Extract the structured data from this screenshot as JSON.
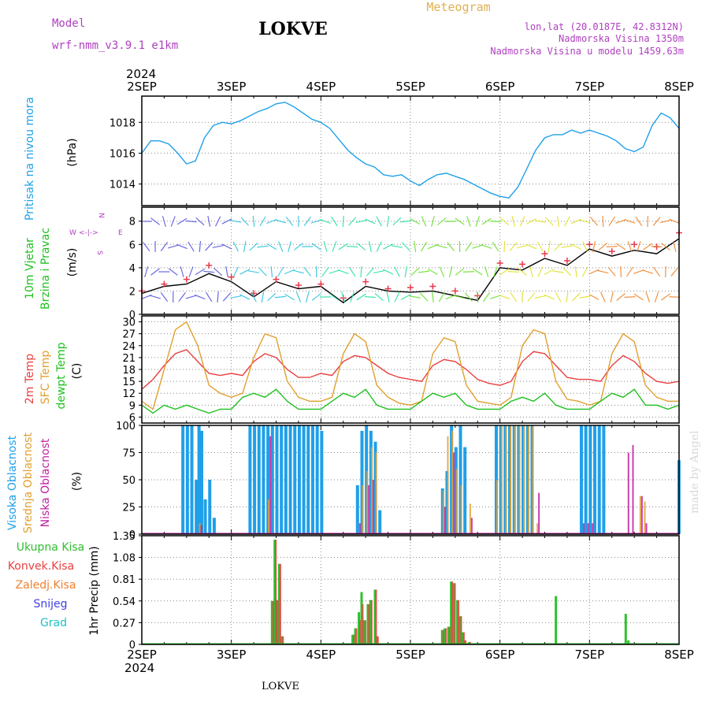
{
  "header": {
    "model_label": "Model",
    "model_name": "wrf-nmm_v3.9.1  e1km",
    "location_title": "LOKVE",
    "product_title": "Meteogram",
    "lonlat": "lon,lat (20.0187E, 42.8312N)",
    "altitude": "Nadmorska Visina 1350m",
    "model_altitude": "Nadmorska Visina u modelu 1459.63m",
    "footer_location": "LOKVE",
    "watermark": "made by Angel"
  },
  "colors": {
    "pressure": "#1fa0e8",
    "wind_speed_line": "#000000",
    "wind_gust_marker": "#e8384b",
    "temp_2m": "#e84040",
    "temp_sfc": "#e0a030",
    "temp_dewpt": "#20c020",
    "cloud_high": "#1fa0e8",
    "cloud_mid": "#e0a030",
    "cloud_low": "#c020a0",
    "precip_total": "#30c030",
    "precip_conv": "#e84040",
    "precip_frozen": "#f08030",
    "snow": "#4040e0",
    "grad": "#20c0c0",
    "title": "#e0b050",
    "model_text": "#b040c0",
    "grid": "#888888"
  },
  "time_axis": {
    "year": "2024",
    "ticks": [
      "2SEP",
      "3SEP",
      "4SEP",
      "5SEP",
      "6SEP",
      "7SEP",
      "8SEP"
    ]
  },
  "chart_data": [
    {
      "type": "line",
      "id": "pressure",
      "ylabel_left": "Pritisak na nivou mora",
      "ylabel_unit": "(hPa)",
      "yticks": [
        "1014",
        "1016",
        "1018"
      ],
      "ylim": [
        1012.6,
        1019.7
      ],
      "x": [
        0.0,
        0.1,
        0.2,
        0.3,
        0.4,
        0.5,
        0.6,
        0.7,
        0.8,
        0.9,
        1.0,
        1.1,
        1.2,
        1.3,
        1.4,
        1.5,
        1.6,
        1.7,
        1.8,
        1.9,
        2.0,
        2.1,
        2.2,
        2.3,
        2.4,
        2.5,
        2.6,
        2.7,
        2.8,
        2.9,
        3.0,
        3.1,
        3.2,
        3.3,
        3.4,
        3.5,
        3.6,
        3.7,
        3.8,
        3.9,
        4.0,
        4.1,
        4.2,
        4.3,
        4.4,
        4.5,
        4.6,
        4.7,
        4.8,
        4.9,
        5.0,
        5.1,
        5.2,
        5.3,
        5.4,
        5.5,
        5.6,
        5.7,
        5.8,
        5.9,
        6.0
      ],
      "series": [
        {
          "values": [
            1016.0,
            1016.8,
            1016.8,
            1016.6,
            1016.0,
            1015.3,
            1015.5,
            1017.0,
            1017.8,
            1018.0,
            1017.9,
            1018.1,
            1018.4,
            1018.7,
            1018.9,
            1019.2,
            1019.3,
            1019.0,
            1018.6,
            1018.2,
            1018.0,
            1017.6,
            1016.9,
            1016.2,
            1015.7,
            1015.3,
            1015.1,
            1014.6,
            1014.5,
            1014.6,
            1014.2,
            1013.9,
            1014.3,
            1014.6,
            1014.7,
            1014.5,
            1014.3,
            1014.0,
            1013.7,
            1013.4,
            1013.2,
            1013.1,
            1013.8,
            1015.0,
            1016.2,
            1017.0,
            1017.2,
            1017.2,
            1017.5,
            1017.3,
            1017.5,
            1017.3,
            1017.1,
            1016.8,
            1016.3,
            1016.1,
            1016.4,
            1017.8,
            1018.6,
            1018.3,
            1017.6
          ]
        }
      ]
    },
    {
      "type": "line",
      "id": "wind",
      "ylabel_left": "10m Vjetar",
      "ylabel_left2": "Brzina i Pravac",
      "ylabel_unit": "(m/s)",
      "compass": {
        "n": "N",
        "s": "S",
        "e": "E",
        "w": "W"
      },
      "yticks": [
        "0",
        "2",
        "4",
        "6",
        "8"
      ],
      "ylim": [
        0,
        9.2
      ],
      "x": [
        0.0,
        0.25,
        0.5,
        0.75,
        1.0,
        1.25,
        1.5,
        1.75,
        2.0,
        2.25,
        2.5,
        2.75,
        3.0,
        3.25,
        3.5,
        3.75,
        4.0,
        4.25,
        4.5,
        4.75,
        5.0,
        5.25,
        5.5,
        5.75,
        6.0
      ],
      "series": [
        {
          "name": "speed",
          "values": [
            1.8,
            2.4,
            2.6,
            3.5,
            2.8,
            1.5,
            2.8,
            2.2,
            2.4,
            1.0,
            2.4,
            2.0,
            1.9,
            2.0,
            1.6,
            1.2,
            4.0,
            3.8,
            4.8,
            4.2,
            5.6,
            5.0,
            5.5,
            5.2,
            6.5
          ]
        },
        {
          "name": "gust",
          "values": [
            2.0,
            2.6,
            3.0,
            4.2,
            3.2,
            1.8,
            3.0,
            2.5,
            2.6,
            1.4,
            2.8,
            2.2,
            2.3,
            2.4,
            2.0,
            1.6,
            4.4,
            4.3,
            5.2,
            4.6,
            6.0,
            5.4,
            6.0,
            5.8,
            7.0
          ]
        }
      ]
    },
    {
      "type": "line",
      "id": "temperature",
      "ylabel_left": "2m Temp",
      "ylabel_left2": "SFC Temp",
      "ylabel_left3": "dewpt Temp",
      "ylabel_unit": "(C)",
      "yticks": [
        "6",
        "9",
        "12",
        "15",
        "18",
        "21",
        "24",
        "27",
        "30"
      ],
      "ylim": [
        4.5,
        31.5
      ],
      "x": [
        0.0,
        0.125,
        0.25,
        0.375,
        0.5,
        0.625,
        0.75,
        0.875,
        1.0,
        1.125,
        1.25,
        1.375,
        1.5,
        1.625,
        1.75,
        1.875,
        2.0,
        2.125,
        2.25,
        2.375,
        2.5,
        2.625,
        2.75,
        2.875,
        3.0,
        3.125,
        3.25,
        3.375,
        3.5,
        3.625,
        3.75,
        3.875,
        4.0,
        4.125,
        4.25,
        4.375,
        4.5,
        4.625,
        4.75,
        4.875,
        5.0,
        5.125,
        5.25,
        5.375,
        5.5,
        5.625,
        5.75,
        5.875,
        6.0
      ],
      "series": [
        {
          "name": "2m",
          "values": [
            13,
            15.5,
            19,
            22,
            23,
            20,
            17,
            16.5,
            17,
            16.5,
            20,
            22,
            21,
            18,
            16,
            16,
            17,
            16.5,
            20,
            21.5,
            21,
            19,
            17,
            16,
            15.5,
            15,
            19,
            20.5,
            20,
            18,
            15.5,
            14.5,
            14,
            15,
            20,
            22.5,
            22,
            19,
            16,
            15.5,
            15.5,
            15,
            19,
            21.5,
            20,
            17,
            15,
            14.5,
            15
          ]
        },
        {
          "name": "SFC",
          "values": [
            10,
            8,
            18,
            28,
            30,
            24,
            14,
            12,
            11,
            12,
            21,
            27,
            26,
            15,
            11,
            10,
            10,
            11,
            22,
            27,
            25,
            14,
            11,
            9.5,
            9,
            10,
            22,
            26,
            25,
            14,
            10,
            9.5,
            9,
            11,
            24,
            28,
            27,
            15,
            10.5,
            10,
            9,
            10,
            22,
            27,
            25,
            14,
            11,
            10,
            10
          ]
        },
        {
          "name": "dewpt",
          "values": [
            9,
            7,
            9,
            8,
            9,
            8,
            7,
            8,
            8,
            11,
            12,
            11,
            13,
            10,
            8,
            8,
            8,
            10,
            12,
            11,
            13,
            9,
            8,
            8,
            8,
            10,
            12,
            11,
            12,
            9,
            8,
            8,
            8,
            10,
            11,
            10,
            12,
            9,
            8,
            8,
            8,
            10,
            12,
            11,
            13,
            9,
            9,
            8,
            9
          ]
        }
      ]
    },
    {
      "type": "bar",
      "id": "cloud",
      "ylabel_left": "Visoka Oblacnost",
      "ylabel_left2": "Srednja Oblacnost",
      "ylabel_left3": "Niska Oblacnost",
      "ylabel_unit": "(%)",
      "yticks": [
        "0",
        "25",
        "50",
        "75",
        "100"
      ],
      "ylim": [
        0,
        100
      ],
      "x": [
        0.45,
        0.5,
        0.55,
        0.6,
        0.63,
        0.66,
        0.7,
        0.75,
        0.8,
        0.83,
        1.2,
        1.25,
        1.3,
        1.35,
        1.4,
        1.45,
        1.5,
        1.55,
        1.6,
        1.65,
        1.7,
        1.75,
        1.8,
        1.85,
        1.9,
        1.95,
        2.0,
        2.4,
        2.45,
        2.5,
        2.55,
        2.6,
        2.65,
        2.7,
        3.35,
        3.4,
        3.45,
        3.5,
        3.55,
        3.6,
        3.65,
        3.95,
        4.0,
        4.05,
        4.1,
        4.15,
        4.2,
        4.25,
        4.3,
        4.35,
        4.4,
        4.9,
        4.95,
        5.0,
        5.05,
        5.1,
        5.15,
        5.4,
        5.45,
        5.5,
        5.55,
        5.6,
        5.99
      ],
      "series": [
        {
          "name": "high",
          "values": [
            100,
            100,
            100,
            50,
            100,
            95,
            32,
            50,
            15,
            0,
            100,
            100,
            100,
            100,
            100,
            100,
            100,
            100,
            100,
            100,
            100,
            100,
            100,
            100,
            100,
            100,
            95,
            45,
            95,
            100,
            95,
            85,
            22,
            0,
            42,
            58,
            100,
            80,
            100,
            80,
            0,
            100,
            100,
            100,
            100,
            100,
            100,
            100,
            100,
            100,
            0,
            100,
            100,
            100,
            100,
            100,
            100,
            0,
            0,
            0,
            0,
            0,
            68
          ]
        },
        {
          "name": "mid",
          "values": [
            0,
            0,
            0,
            0,
            10,
            0,
            0,
            0,
            0,
            0,
            0,
            0,
            0,
            0,
            32,
            0,
            0,
            0,
            0,
            0,
            0,
            0,
            0,
            0,
            0,
            0,
            0,
            0,
            45,
            58,
            80,
            75,
            0,
            0,
            40,
            90,
            95,
            60,
            45,
            0,
            28,
            50,
            100,
            100,
            100,
            100,
            100,
            100,
            100,
            100,
            10,
            0,
            0,
            0,
            0,
            0,
            0,
            0,
            0,
            0,
            35,
            30,
            0
          ]
        },
        {
          "name": "low",
          "values": [
            0,
            0,
            0,
            0,
            8,
            0,
            0,
            0,
            0,
            0,
            0,
            0,
            0,
            0,
            90,
            0,
            0,
            0,
            0,
            0,
            0,
            0,
            0,
            0,
            0,
            0,
            0,
            10,
            0,
            45,
            50,
            0,
            0,
            0,
            25,
            0,
            75,
            0,
            0,
            0,
            15,
            0,
            0,
            0,
            0,
            0,
            0,
            0,
            0,
            0,
            38,
            10,
            10,
            10,
            0,
            0,
            0,
            75,
            82,
            0,
            35,
            10,
            0
          ]
        }
      ]
    },
    {
      "type": "bar",
      "id": "precip",
      "labels_left": [
        "Ukupna Kisa",
        "Konvek.Kisa",
        "Zaledj.Kisa",
        "Snijeg",
        "Grad"
      ],
      "ylabel_unit": "1hr Precip (mm)",
      "yticks": [
        "0",
        "0.27",
        "0.54",
        "0.81",
        "1.08",
        "1.35"
      ],
      "ylim": [
        0,
        1.35
      ],
      "x": [
        1.45,
        1.48,
        1.5,
        1.53,
        1.56,
        2.35,
        2.38,
        2.42,
        2.45,
        2.48,
        2.52,
        2.55,
        2.6,
        2.62,
        3.35,
        3.38,
        3.42,
        3.45,
        3.48,
        3.52,
        3.55,
        3.58,
        3.6,
        3.65,
        4.62,
        5.4,
        5.43
      ],
      "series": [
        {
          "name": "total",
          "values": [
            0.54,
            1.3,
            0.55,
            1.0,
            0.1,
            0.12,
            0.2,
            0.4,
            0.65,
            0.3,
            0.5,
            0.55,
            0.68,
            0.1,
            0.18,
            0.2,
            0.22,
            0.78,
            0.76,
            0.55,
            0.35,
            0.15,
            0.05,
            0.03,
            0.6,
            0.38,
            0.05
          ]
        },
        {
          "name": "convective",
          "values": [
            0.54,
            1.3,
            0.55,
            1.0,
            0.1,
            0.12,
            0.2,
            0.3,
            0.5,
            0.3,
            0.5,
            0.55,
            0.68,
            0.1,
            0.18,
            0.2,
            0.22,
            0.78,
            0.76,
            0.55,
            0.35,
            0.15,
            0.05,
            0.03,
            0.0,
            0.0,
            0.0
          ]
        }
      ]
    }
  ]
}
